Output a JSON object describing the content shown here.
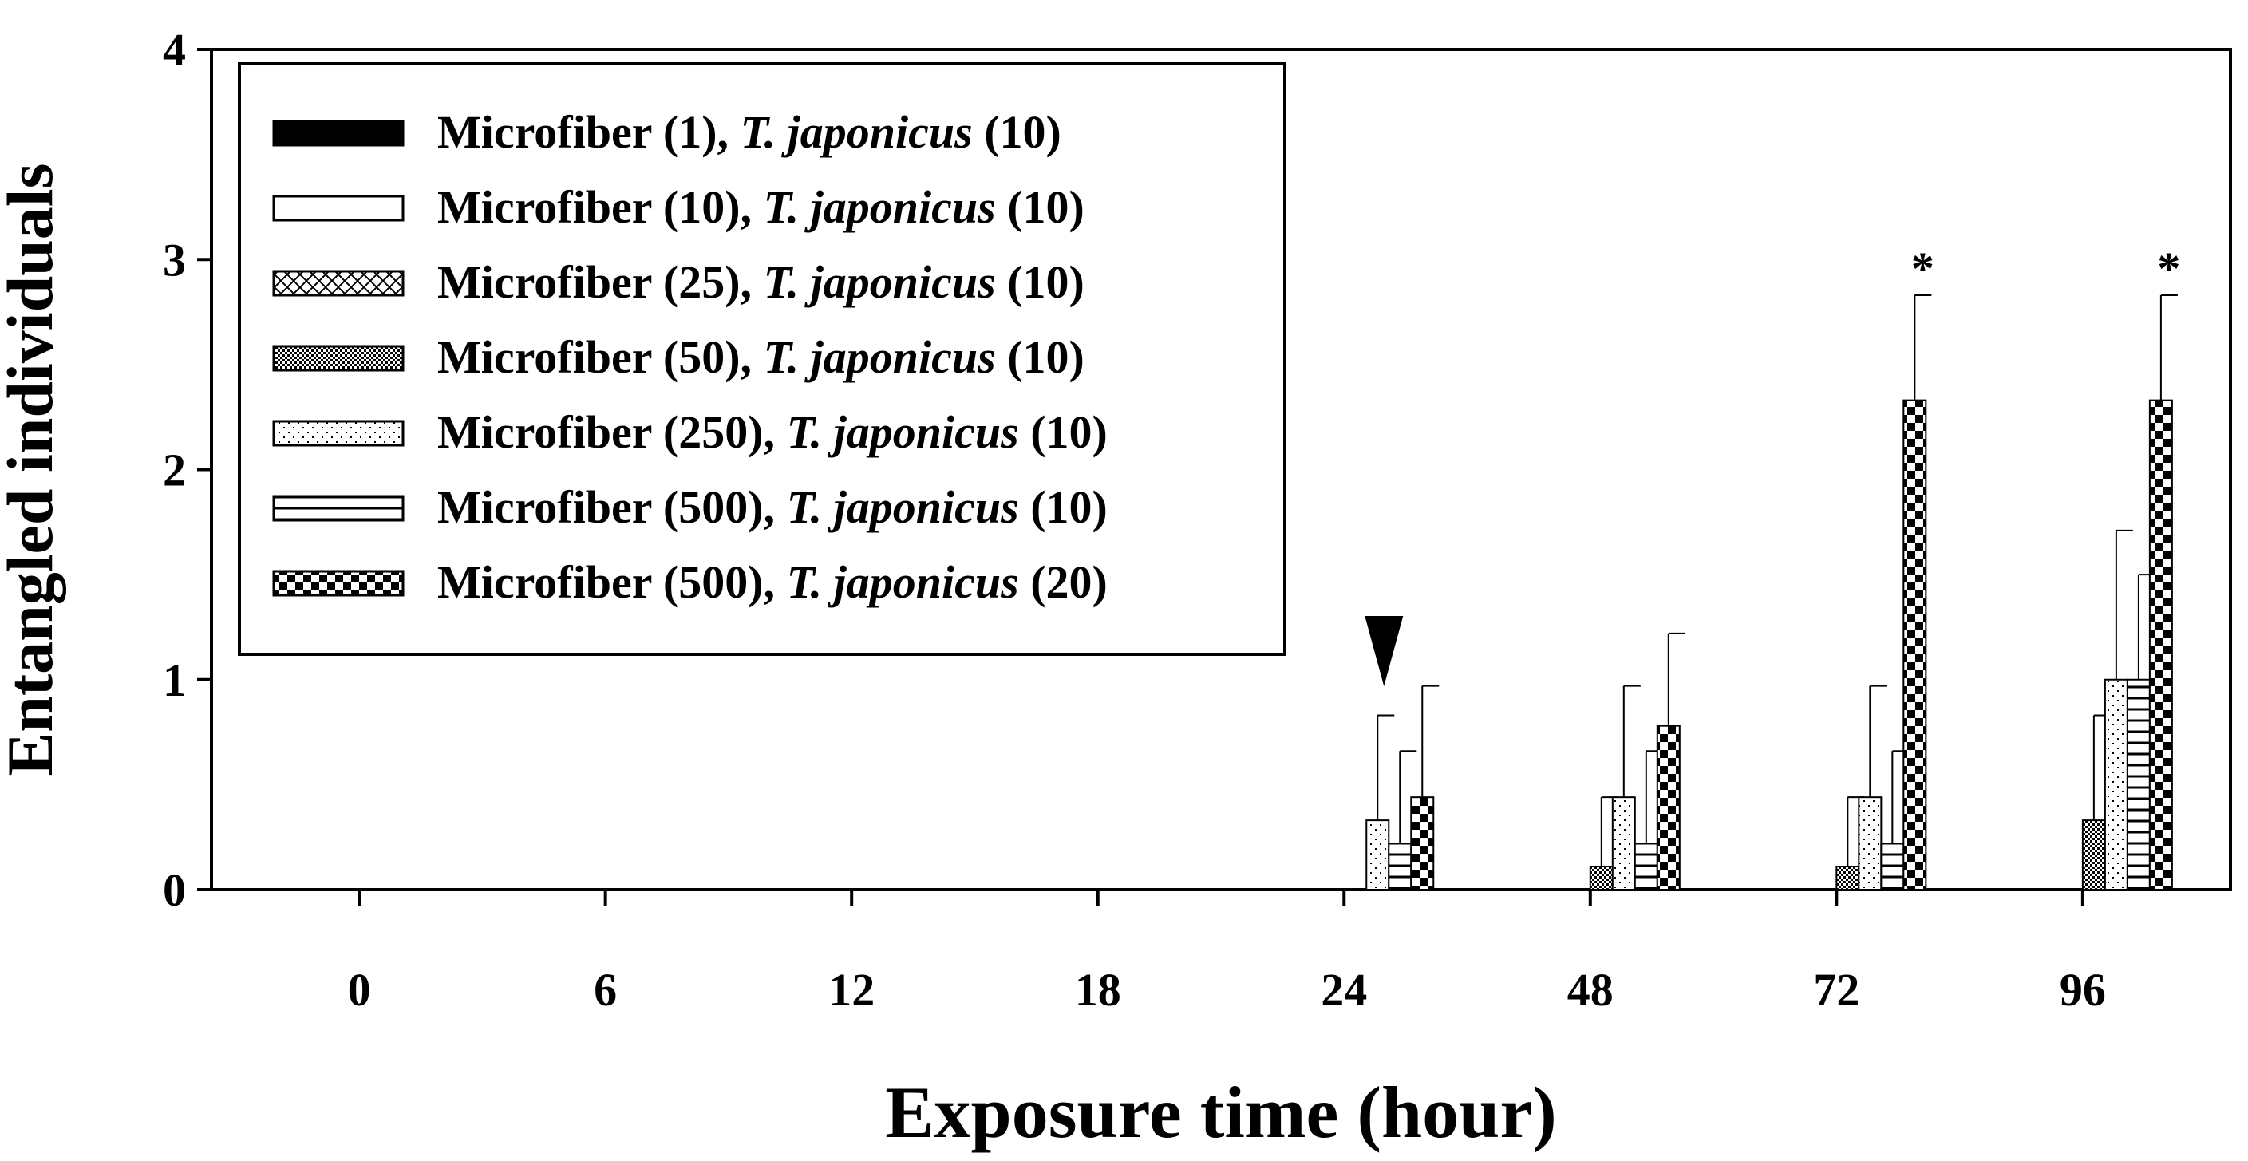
{
  "chart_data": {
    "type": "bar",
    "xlabel": "Exposure time (hour)",
    "ylabel": "Entangled individuals",
    "ylim": [
      0,
      4
    ],
    "yticks": [
      "0",
      "1",
      "2",
      "3",
      "4"
    ],
    "categories": [
      "0",
      "6",
      "12",
      "18",
      "24",
      "48",
      "72",
      "96"
    ],
    "legend_position": "top-left",
    "series": [
      {
        "name_prefix": "Microfiber (1), ",
        "name_species": "T. japonicus",
        "name_suffix": " (10)",
        "pattern": "solid-black",
        "values": [
          0,
          0,
          0,
          0,
          0,
          0,
          0,
          0
        ],
        "errors": [
          0,
          0,
          0,
          0,
          0,
          0,
          0,
          0
        ]
      },
      {
        "name_prefix": "Microfiber (10), ",
        "name_species": "T. japonicus",
        "name_suffix": " (10)",
        "pattern": "white",
        "values": [
          0,
          0,
          0,
          0,
          0,
          0,
          0,
          0
        ],
        "errors": [
          0,
          0,
          0,
          0,
          0,
          0,
          0,
          0
        ]
      },
      {
        "name_prefix": "Microfiber (25), ",
        "name_species": "T. japonicus",
        "name_suffix": " (10)",
        "pattern": "crosshatch",
        "values": [
          0,
          0,
          0,
          0,
          0,
          0,
          0,
          0
        ],
        "errors": [
          0,
          0,
          0,
          0,
          0,
          0,
          0,
          0
        ]
      },
      {
        "name_prefix": "Microfiber (50), ",
        "name_species": "T. japonicus",
        "name_suffix": " (10)",
        "pattern": "dense-dots",
        "values": [
          0,
          0,
          0,
          0,
          0,
          0.11,
          0.11,
          0.33
        ],
        "errors": [
          0,
          0,
          0,
          0,
          0,
          0.33,
          0.33,
          0.5
        ]
      },
      {
        "name_prefix": "Microfiber (250), ",
        "name_species": "T. japonicus",
        "name_suffix": " (10)",
        "pattern": "sparse-dots",
        "values": [
          0,
          0,
          0,
          0,
          0.33,
          0.44,
          0.44,
          1.0
        ],
        "errors": [
          0,
          0,
          0,
          0,
          0.5,
          0.53,
          0.53,
          0.71
        ]
      },
      {
        "name_prefix": "Microfiber (500), ",
        "name_species": "T. japonicus",
        "name_suffix": " (10)",
        "pattern": "horizontal-lines",
        "values": [
          0,
          0,
          0,
          0,
          0.22,
          0.22,
          0.22,
          1.0
        ],
        "errors": [
          0,
          0,
          0,
          0,
          0.44,
          0.44,
          0.44,
          0.5
        ]
      },
      {
        "name_prefix": "Microfiber (500), ",
        "name_species": "T. japonicus",
        "name_suffix": " (20)",
        "pattern": "checkerboard",
        "values": [
          0,
          0,
          0,
          0,
          0.44,
          0.78,
          2.33,
          2.33
        ],
        "errors": [
          0,
          0,
          0,
          0,
          0.53,
          0.44,
          0.5,
          0.5
        ]
      }
    ],
    "annotations": [
      {
        "type": "arrowhead-down",
        "category": "24"
      },
      {
        "type": "text",
        "text": "*",
        "category": "72",
        "series": 6
      },
      {
        "type": "text",
        "text": "*",
        "category": "96",
        "series": 6
      }
    ]
  }
}
